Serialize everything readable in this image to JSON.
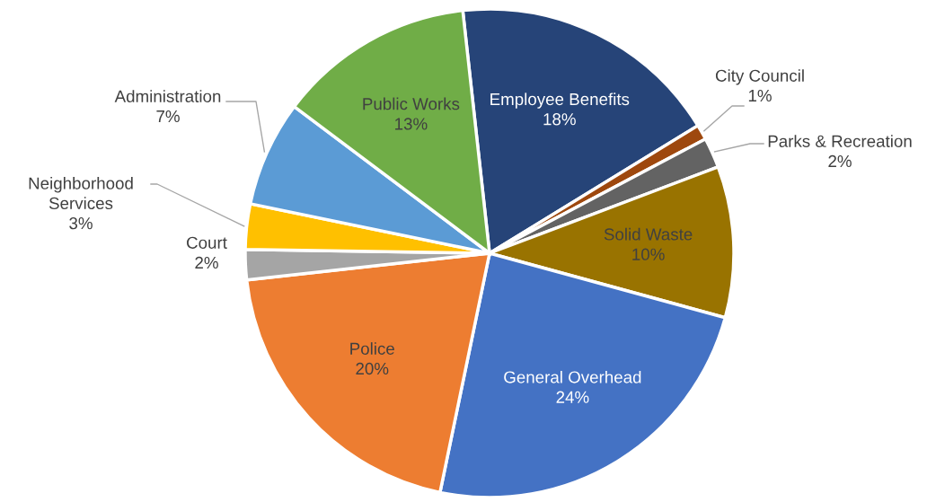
{
  "chart_data": {
    "type": "pie",
    "categories": [
      "Employee Benefits",
      "City Council",
      "Parks & Recreation",
      "Solid Waste",
      "General Overhead",
      "Police",
      "Court",
      "Neighborhood Services",
      "Administration",
      "Public Works"
    ],
    "values": [
      18,
      1,
      2,
      10,
      24,
      20,
      2,
      3,
      7,
      13
    ],
    "value_labels": [
      "18%",
      "1%",
      "2%",
      "10%",
      "24%",
      "20%",
      "2%",
      "3%",
      "7%",
      "13%"
    ],
    "colors": [
      "#264478",
      "#9e480e",
      "#636363",
      "#997300",
      "#4472c4",
      "#ed7d31",
      "#a5a5a5",
      "#ffc000",
      "#5b9bd5",
      "#70ad47"
    ]
  }
}
